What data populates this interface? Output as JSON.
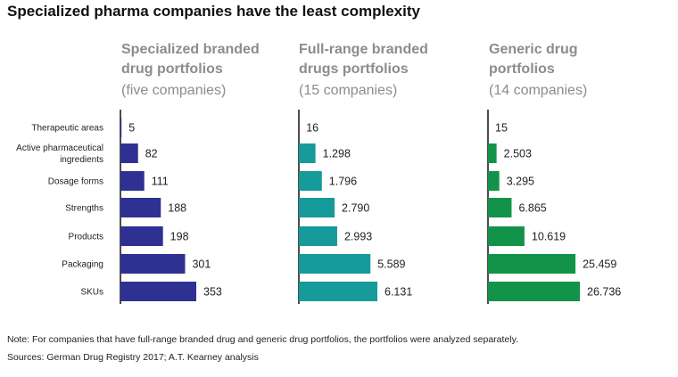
{
  "chart_data": {
    "type": "bar",
    "orientation": "horizontal",
    "title": "Specialized pharma companies have the least complexity",
    "categories": [
      "Therapeutic areas",
      "Active pharmaceutical ingredients",
      "Dosage forms",
      "Strengths",
      "Products",
      "Packaging",
      "SKUs"
    ],
    "category_lines": [
      [
        "Therapeutic areas"
      ],
      [
        "Active pharmaceutical",
        "ingredients"
      ],
      [
        "Dosage forms"
      ],
      [
        "Strengths"
      ],
      [
        "Products"
      ],
      [
        "Packaging"
      ],
      [
        "SKUs"
      ]
    ],
    "series": [
      {
        "name": "Specialized branded drug portfolios",
        "header": [
          "Specialized branded",
          "drug portfolios"
        ],
        "sub": "(five companies)",
        "color": "#2e3192",
        "xlim": [
          0,
          353
        ],
        "values": [
          5,
          82,
          111,
          188,
          198,
          301,
          353
        ],
        "labels": [
          "5",
          "82",
          "111",
          "188",
          "198",
          "301",
          "353"
        ]
      },
      {
        "name": "Full-range branded drugs portfolios",
        "header": [
          "Full-range branded",
          "drugs portfolios"
        ],
        "sub": "(15 companies)",
        "color": "#169a9a",
        "xlim": [
          0,
          6131
        ],
        "values": [
          16,
          1298,
          1796,
          2790,
          2993,
          5589,
          6131
        ],
        "labels": [
          "16",
          "1.298",
          "1.796",
          "2.790",
          "2.993",
          "5.589",
          "6.131"
        ]
      },
      {
        "name": "Generic drug portfolios",
        "header": [
          "Generic drug",
          "portfolios"
        ],
        "sub": "(14 companies)",
        "color": "#13934a",
        "xlim": [
          0,
          26736
        ],
        "values": [
          15,
          2503,
          3295,
          6865,
          10619,
          25459,
          26736
        ],
        "labels": [
          "15",
          "2.503",
          "3.295",
          "6.865",
          "10.619",
          "25.459",
          "26.736"
        ]
      }
    ]
  },
  "footer": {
    "note": "Note: For companies that have full-range branded drug and generic drug portfolios, the portfolios were analyzed separately.",
    "sources": "Sources: German Drug Registry 2017; A.T. Kearney analysis"
  }
}
